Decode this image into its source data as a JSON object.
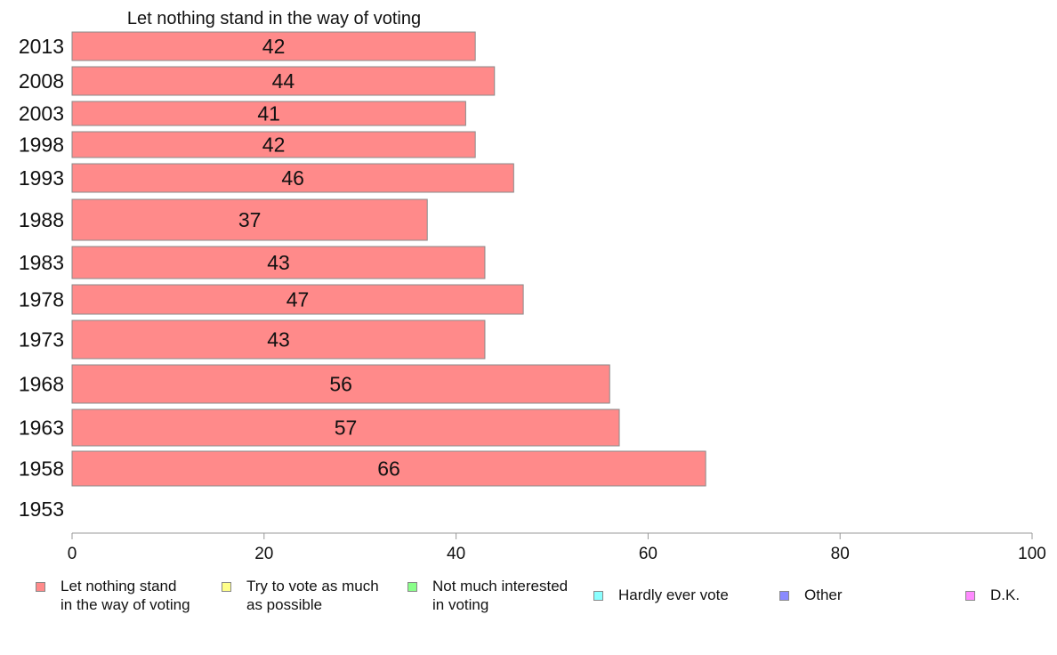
{
  "chart_data": {
    "type": "bar",
    "orientation": "horizontal",
    "stacked": true,
    "title": "Let nothing stand in the way of voting",
    "categories": [
      "2013",
      "2008",
      "2003",
      "1998",
      "1993",
      "1988",
      "1983",
      "1978",
      "1973",
      "1968",
      "1963",
      "1958",
      "1953"
    ],
    "series": [
      {
        "name": "Let nothing stand\nin the way of voting",
        "color": "#ff8a8a",
        "values": [
          42,
          44,
          41,
          42,
          46,
          37,
          43,
          47,
          43,
          56,
          57,
          66,
          null
        ]
      }
    ],
    "xlim": [
      0,
      100
    ],
    "xticks": [
      0,
      20,
      40,
      60,
      80,
      100
    ],
    "grid": false,
    "legend_position": "bottom"
  },
  "legend": [
    {
      "label": "Let nothing stand\nin the way of voting",
      "color": "#ff8a8a"
    },
    {
      "label": "Try to vote as much\nas possible",
      "color": "#ffff8a"
    },
    {
      "label": "Not much interested\nin voting",
      "color": "#8aff8a"
    },
    {
      "label": "Hardly ever vote",
      "color": "#8affff"
    },
    {
      "label": "Other",
      "color": "#8a8aff"
    },
    {
      "label": "D.K.",
      "color": "#ff8aff"
    }
  ]
}
